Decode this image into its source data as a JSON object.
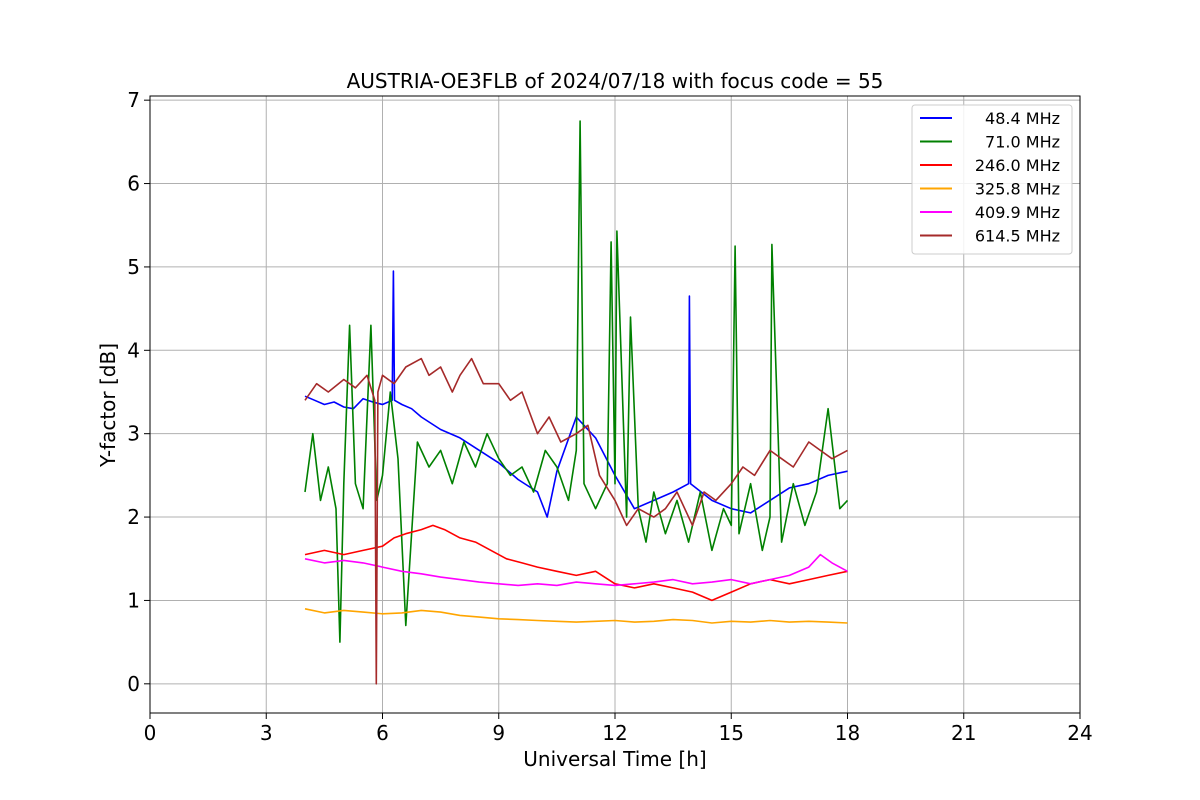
{
  "chart_data": {
    "type": "line",
    "title": "AUSTRIA-OE3FLB of 2024/07/18 with focus code = 55",
    "xlabel": "Universal Time [h]",
    "ylabel": "Y-factor [dB]",
    "xlim": [
      0,
      24
    ],
    "ylim": [
      -0.35,
      7.05
    ],
    "xticks": [
      0,
      3,
      6,
      9,
      12,
      15,
      18,
      21,
      24
    ],
    "yticks": [
      0,
      1,
      2,
      3,
      4,
      5,
      6,
      7
    ],
    "grid": true,
    "legend_position": "top-right",
    "series": [
      {
        "name": "48.4 MHz",
        "color": "#0000ff",
        "x": [
          4.0,
          4.25,
          4.5,
          4.75,
          5.0,
          5.25,
          5.5,
          5.75,
          6.0,
          6.25,
          6.28,
          6.31,
          6.5,
          6.75,
          7.0,
          7.5,
          8.0,
          8.5,
          9.0,
          9.5,
          10.0,
          10.25,
          10.5,
          11.0,
          11.5,
          12.0,
          12.5,
          13.0,
          13.5,
          13.9,
          13.92,
          13.95,
          14.5,
          15.0,
          15.5,
          16.0,
          16.5,
          17.0,
          17.5,
          18.0
        ],
        "y": [
          3.45,
          3.4,
          3.35,
          3.38,
          3.32,
          3.3,
          3.42,
          3.38,
          3.35,
          3.4,
          4.95,
          3.4,
          3.35,
          3.3,
          3.2,
          3.05,
          2.95,
          2.8,
          2.65,
          2.45,
          2.3,
          2.0,
          2.55,
          3.2,
          2.95,
          2.5,
          2.1,
          2.2,
          2.3,
          2.4,
          4.65,
          2.4,
          2.2,
          2.1,
          2.05,
          2.2,
          2.35,
          2.4,
          2.5,
          2.55
        ]
      },
      {
        "name": "71.0 MHz",
        "color": "#008000",
        "x": [
          4.0,
          4.2,
          4.4,
          4.6,
          4.8,
          4.9,
          5.0,
          5.15,
          5.3,
          5.5,
          5.7,
          5.85,
          6.0,
          6.2,
          6.4,
          6.6,
          6.9,
          7.2,
          7.5,
          7.8,
          8.1,
          8.4,
          8.7,
          9.0,
          9.3,
          9.6,
          9.9,
          10.2,
          10.5,
          10.8,
          11.0,
          11.1,
          11.2,
          11.5,
          11.8,
          11.9,
          12.0,
          12.05,
          12.3,
          12.4,
          12.6,
          12.8,
          13.0,
          13.3,
          13.6,
          13.9,
          14.2,
          14.5,
          14.8,
          15.0,
          15.1,
          15.2,
          15.5,
          15.8,
          16.0,
          16.05,
          16.3,
          16.6,
          16.9,
          17.2,
          17.5,
          17.8,
          18.0
        ],
        "y": [
          2.3,
          3.0,
          2.2,
          2.6,
          2.1,
          0.5,
          2.4,
          4.3,
          2.4,
          2.1,
          4.3,
          2.2,
          2.5,
          3.5,
          2.7,
          0.7,
          2.9,
          2.6,
          2.8,
          2.4,
          2.9,
          2.6,
          3.0,
          2.7,
          2.5,
          2.6,
          2.3,
          2.8,
          2.6,
          2.2,
          2.8,
          6.75,
          2.4,
          2.1,
          2.4,
          5.3,
          2.4,
          5.43,
          2.0,
          4.4,
          2.1,
          1.7,
          2.3,
          1.8,
          2.2,
          1.7,
          2.3,
          1.6,
          2.1,
          1.9,
          5.25,
          1.8,
          2.4,
          1.6,
          2.0,
          5.27,
          1.7,
          2.4,
          1.9,
          2.3,
          3.3,
          2.1,
          2.2
        ]
      },
      {
        "name": "246.0 MHz",
        "color": "#ff0000",
        "x": [
          4.0,
          4.5,
          5.0,
          5.5,
          6.0,
          6.3,
          6.6,
          7.0,
          7.3,
          7.6,
          8.0,
          8.4,
          8.8,
          9.2,
          9.6,
          10.0,
          10.5,
          11.0,
          11.5,
          12.0,
          12.5,
          13.0,
          13.5,
          14.0,
          14.5,
          15.0,
          15.5,
          16.0,
          16.5,
          17.0,
          17.5,
          18.0
        ],
        "y": [
          1.55,
          1.6,
          1.55,
          1.6,
          1.65,
          1.75,
          1.8,
          1.85,
          1.9,
          1.85,
          1.75,
          1.7,
          1.6,
          1.5,
          1.45,
          1.4,
          1.35,
          1.3,
          1.35,
          1.2,
          1.15,
          1.2,
          1.15,
          1.1,
          1.0,
          1.1,
          1.2,
          1.25,
          1.2,
          1.25,
          1.3,
          1.35
        ]
      },
      {
        "name": "325.8 MHz",
        "color": "#ffa500",
        "x": [
          4.0,
          4.5,
          5.0,
          5.5,
          6.0,
          6.5,
          7.0,
          7.5,
          8.0,
          8.5,
          9.0,
          9.5,
          10.0,
          10.5,
          11.0,
          11.5,
          12.0,
          12.5,
          13.0,
          13.5,
          14.0,
          14.5,
          15.0,
          15.5,
          16.0,
          16.5,
          17.0,
          17.5,
          18.0
        ],
        "y": [
          0.9,
          0.85,
          0.88,
          0.86,
          0.84,
          0.85,
          0.88,
          0.86,
          0.82,
          0.8,
          0.78,
          0.77,
          0.76,
          0.75,
          0.74,
          0.75,
          0.76,
          0.74,
          0.75,
          0.77,
          0.76,
          0.73,
          0.75,
          0.74,
          0.76,
          0.74,
          0.75,
          0.74,
          0.73
        ]
      },
      {
        "name": "409.9 MHz",
        "color": "#ff00ff",
        "x": [
          4.0,
          4.5,
          5.0,
          5.5,
          6.0,
          6.5,
          7.0,
          7.5,
          8.0,
          8.5,
          9.0,
          9.5,
          10.0,
          10.5,
          11.0,
          11.5,
          12.0,
          12.5,
          13.0,
          13.5,
          14.0,
          14.5,
          15.0,
          15.5,
          16.0,
          16.5,
          17.0,
          17.3,
          17.6,
          18.0
        ],
        "y": [
          1.5,
          1.45,
          1.48,
          1.45,
          1.4,
          1.35,
          1.32,
          1.28,
          1.25,
          1.22,
          1.2,
          1.18,
          1.2,
          1.18,
          1.22,
          1.2,
          1.18,
          1.2,
          1.22,
          1.25,
          1.2,
          1.22,
          1.25,
          1.2,
          1.25,
          1.3,
          1.4,
          1.55,
          1.45,
          1.35
        ]
      },
      {
        "name": "614.5 MHz",
        "color": "#a52a2a",
        "x": [
          4.0,
          4.3,
          4.6,
          5.0,
          5.3,
          5.6,
          5.8,
          5.84,
          5.88,
          6.0,
          6.3,
          6.6,
          7.0,
          7.2,
          7.5,
          7.8,
          8.0,
          8.3,
          8.6,
          9.0,
          9.3,
          9.6,
          10.0,
          10.3,
          10.6,
          11.0,
          11.3,
          11.6,
          12.0,
          12.3,
          12.6,
          13.0,
          13.3,
          13.6,
          14.0,
          14.3,
          14.6,
          15.0,
          15.3,
          15.6,
          16.0,
          16.3,
          16.6,
          17.0,
          17.3,
          17.6,
          18.0
        ],
        "y": [
          3.4,
          3.6,
          3.5,
          3.65,
          3.55,
          3.7,
          3.4,
          0.0,
          3.5,
          3.7,
          3.6,
          3.8,
          3.9,
          3.7,
          3.8,
          3.5,
          3.7,
          3.9,
          3.6,
          3.6,
          3.4,
          3.5,
          3.0,
          3.2,
          2.9,
          3.0,
          3.1,
          2.5,
          2.2,
          1.9,
          2.1,
          2.0,
          2.1,
          2.3,
          1.9,
          2.3,
          2.2,
          2.4,
          2.6,
          2.5,
          2.8,
          2.7,
          2.6,
          2.9,
          2.8,
          2.7,
          2.8
        ]
      }
    ]
  }
}
